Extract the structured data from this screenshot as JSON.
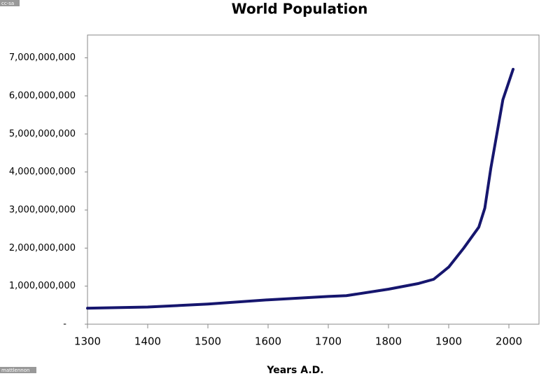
{
  "chart_data": {
    "type": "line",
    "title": "World Population",
    "x_label": "Years A.D.",
    "annotations": [
      "cc-sa",
      "mattlennon"
    ],
    "x": [
      1300,
      1400,
      1500,
      1600,
      1700,
      1730,
      1800,
      1850,
      1875,
      1900,
      1925,
      1950,
      1960,
      1970,
      1980,
      1990,
      2007
    ],
    "series": [
      {
        "name": "World Population",
        "color": "#16166e",
        "values": [
          420000000,
          450000000,
          530000000,
          640000000,
          730000000,
          750000000,
          920000000,
          1070000000,
          1180000000,
          1500000000,
          2000000000,
          2550000000,
          3050000000,
          4100000000,
          5000000000,
          5900000000,
          6700000000
        ]
      }
    ],
    "xlim": [
      1300,
      2050
    ],
    "xticks": [
      1300,
      1400,
      1500,
      1600,
      1700,
      1800,
      1900,
      2000
    ],
    "ylim": [
      0,
      7600000000
    ],
    "yticks": [
      {
        "value": 0,
        "label": "-"
      },
      {
        "value": 1000000000,
        "label": "1,000,000,000"
      },
      {
        "value": 2000000000,
        "label": "2,000,000,000"
      },
      {
        "value": 3000000000,
        "label": "3,000,000,000"
      },
      {
        "value": 4000000000,
        "label": "4,000,000,000"
      },
      {
        "value": 5000000000,
        "label": "5,000,000,000"
      },
      {
        "value": 6000000000,
        "label": "6,000,000,000"
      },
      {
        "value": 7000000000,
        "label": "7,000,000,000"
      }
    ],
    "grid": false,
    "legend": false
  }
}
